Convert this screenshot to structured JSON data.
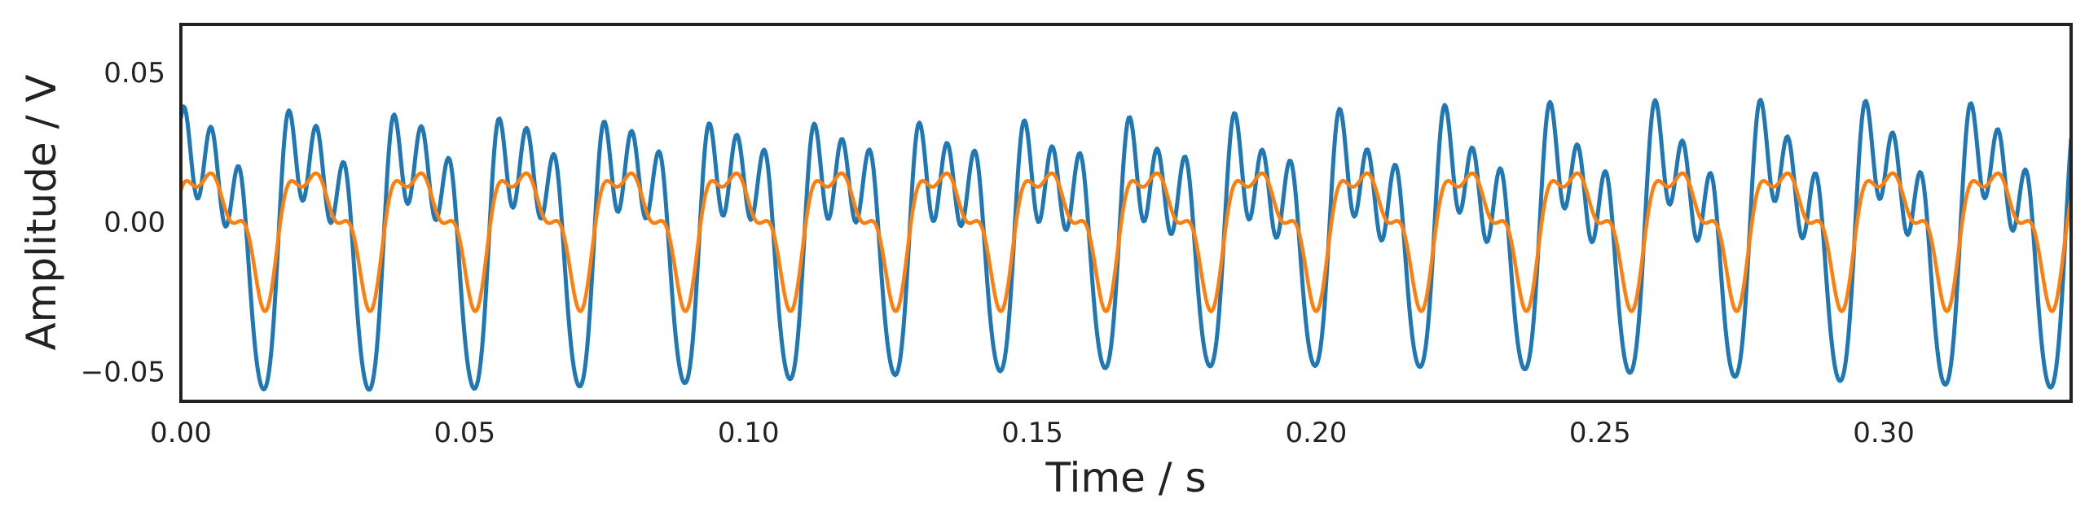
{
  "chart_data": {
    "type": "line",
    "title": "",
    "xlabel": "Time / s",
    "ylabel": "Amplitude / V",
    "xlim": [
      0,
      0.333
    ],
    "ylim": [
      -0.06,
      0.066
    ],
    "xticks": [
      0.0,
      0.05,
      0.1,
      0.15,
      0.2,
      0.25,
      0.3
    ],
    "xtick_labels": [
      "0.00",
      "0.05",
      "0.10",
      "0.15",
      "0.20",
      "0.25",
      "0.30"
    ],
    "yticks": [
      -0.05,
      0.0,
      0.05
    ],
    "ytick_labels": [
      "−0.05",
      "0.00",
      "0.05"
    ],
    "grid": false,
    "legend": "none",
    "series": [
      {
        "color": "#1f77b4",
        "components": [
          {
            "freq_hz": 54,
            "amp": 0.027,
            "phase": 0.0
          },
          {
            "freq_hz": 108,
            "amp": 0.02,
            "phase": 1.1
          },
          {
            "freq_hz": 162,
            "amp": 0.014,
            "phase": 2.3
          },
          {
            "freq_hz": 216,
            "amp": 0.008,
            "phase": 0.7
          },
          {
            "freq_hz": 51,
            "amp": 0.004,
            "phase": 0.3
          }
        ]
      },
      {
        "color": "#ff7f0e",
        "components": [
          {
            "freq_hz": 54,
            "amp": 0.018,
            "phase": 0.0
          },
          {
            "freq_hz": 108,
            "amp": 0.007,
            "phase": 0.8
          },
          {
            "freq_hz": 162,
            "amp": 0.006,
            "phase": 2.0
          }
        ]
      }
    ]
  }
}
